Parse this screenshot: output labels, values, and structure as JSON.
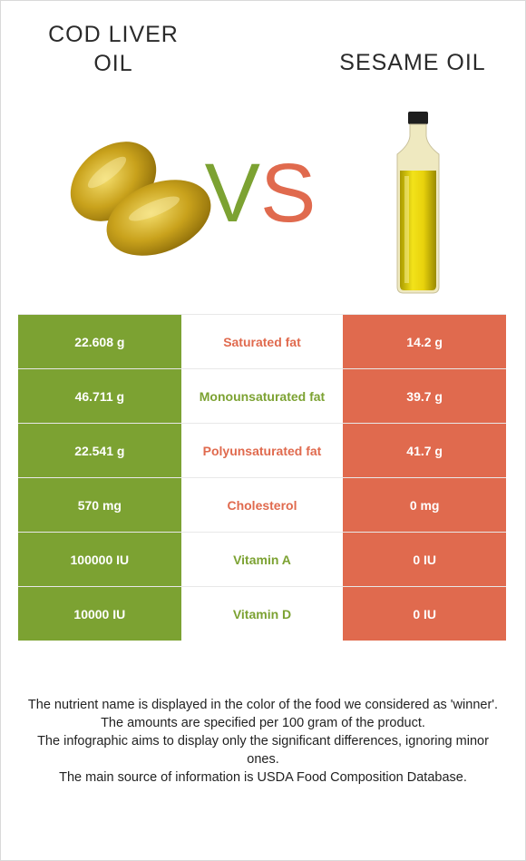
{
  "header": {
    "left_food": "COD LIVER OIL",
    "vs_v": "V",
    "vs_s": "S",
    "right_food": "SESAME OIL"
  },
  "colors": {
    "left_food_color": "#7ca232",
    "right_food_color": "#e06a4e"
  },
  "images": {
    "left": "cod-liver-oil-capsules-icon",
    "right": "sesame-oil-bottle-icon"
  },
  "rows": [
    {
      "left": "22.608 g",
      "name": "Saturated fat",
      "right": "14.2 g",
      "winner": "right"
    },
    {
      "left": "46.711 g",
      "name": "Monounsaturated fat",
      "right": "39.7 g",
      "winner": "left"
    },
    {
      "left": "22.541 g",
      "name": "Polyunsaturated fat",
      "right": "41.7 g",
      "winner": "right"
    },
    {
      "left": "570 mg",
      "name": "Cholesterol",
      "right": "0 mg",
      "winner": "right"
    },
    {
      "left": "100000 IU",
      "name": "Vitamin A",
      "right": "0 IU",
      "winner": "left"
    },
    {
      "left": "10000 IU",
      "name": "Vitamin D",
      "right": "0 IU",
      "winner": "left"
    }
  ],
  "footer": {
    "line1": "The nutrient name is displayed in the color of the food we considered as 'winner'.",
    "line2": "The amounts are specified per 100 gram of the product.",
    "line3": "The infographic aims to display only the significant differences, ignoring minor ones.",
    "line4": "The main source of information is USDA Food Composition Database."
  }
}
